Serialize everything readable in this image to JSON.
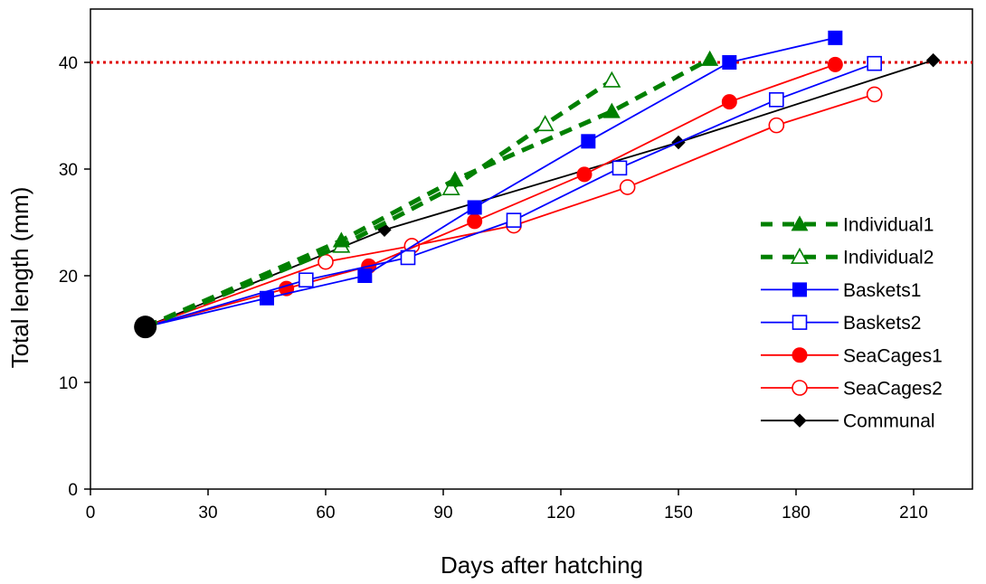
{
  "chart_data": {
    "type": "line",
    "title": "",
    "xlabel": "Days after hatching",
    "ylabel": "Total length (mm)",
    "xlim": [
      0,
      225
    ],
    "ylim": [
      0,
      45
    ],
    "x_ticks": [
      0,
      30,
      60,
      90,
      120,
      150,
      180,
      210
    ],
    "y_ticks": [
      0,
      10,
      20,
      30,
      40
    ],
    "grid": false,
    "legend_position": "right",
    "reference_line": {
      "y": 40,
      "color": "#e00000",
      "style": "dotted"
    },
    "start_point": {
      "x": 14,
      "y": 15.2
    },
    "series": [
      {
        "name": "Individual1",
        "color": "#008000",
        "dash": "dashed",
        "marker": "triangle",
        "filled": true,
        "points": [
          [
            14,
            15.2
          ],
          [
            64,
            23.3
          ],
          [
            93,
            29.0
          ],
          [
            133,
            35.4
          ],
          [
            158,
            40.3
          ]
        ]
      },
      {
        "name": "Individual2",
        "color": "#008000",
        "dash": "dashed",
        "marker": "triangle",
        "filled": false,
        "points": [
          [
            14,
            15.2
          ],
          [
            64,
            22.8
          ],
          [
            92,
            28.2
          ],
          [
            116,
            34.2
          ],
          [
            133,
            38.3
          ]
        ]
      },
      {
        "name": "Baskets1",
        "color": "#0000ff",
        "dash": "solid",
        "marker": "square",
        "filled": true,
        "points": [
          [
            14,
            15.2
          ],
          [
            45,
            17.9
          ],
          [
            70,
            20.0
          ],
          [
            98,
            26.4
          ],
          [
            127,
            32.6
          ],
          [
            163,
            40.0
          ],
          [
            190,
            42.3
          ]
        ]
      },
      {
        "name": "Baskets2",
        "color": "#0000ff",
        "dash": "solid",
        "marker": "square",
        "filled": false,
        "points": [
          [
            14,
            15.2
          ],
          [
            55,
            19.6
          ],
          [
            81,
            21.7
          ],
          [
            108,
            25.2
          ],
          [
            135,
            30.1
          ],
          [
            175,
            36.5
          ],
          [
            200,
            39.9
          ]
        ]
      },
      {
        "name": "SeaCages1",
        "color": "#ff0000",
        "dash": "solid",
        "marker": "circle",
        "filled": true,
        "points": [
          [
            14,
            15.2
          ],
          [
            50,
            18.8
          ],
          [
            71,
            20.9
          ],
          [
            98,
            25.1
          ],
          [
            126,
            29.5
          ],
          [
            163,
            36.3
          ],
          [
            190,
            39.8
          ]
        ]
      },
      {
        "name": "SeaCages2",
        "color": "#ff0000",
        "dash": "solid",
        "marker": "circle",
        "filled": false,
        "points": [
          [
            14,
            15.2
          ],
          [
            60,
            21.3
          ],
          [
            82,
            22.8
          ],
          [
            108,
            24.7
          ],
          [
            137,
            28.3
          ],
          [
            175,
            34.1
          ],
          [
            200,
            37.0
          ]
        ]
      },
      {
        "name": "Communal",
        "color": "#000000",
        "dash": "solid",
        "marker": "diamond",
        "filled": true,
        "points": [
          [
            14,
            15.2
          ],
          [
            75,
            24.3
          ],
          [
            150,
            32.5
          ],
          [
            215,
            40.2
          ]
        ]
      }
    ]
  }
}
